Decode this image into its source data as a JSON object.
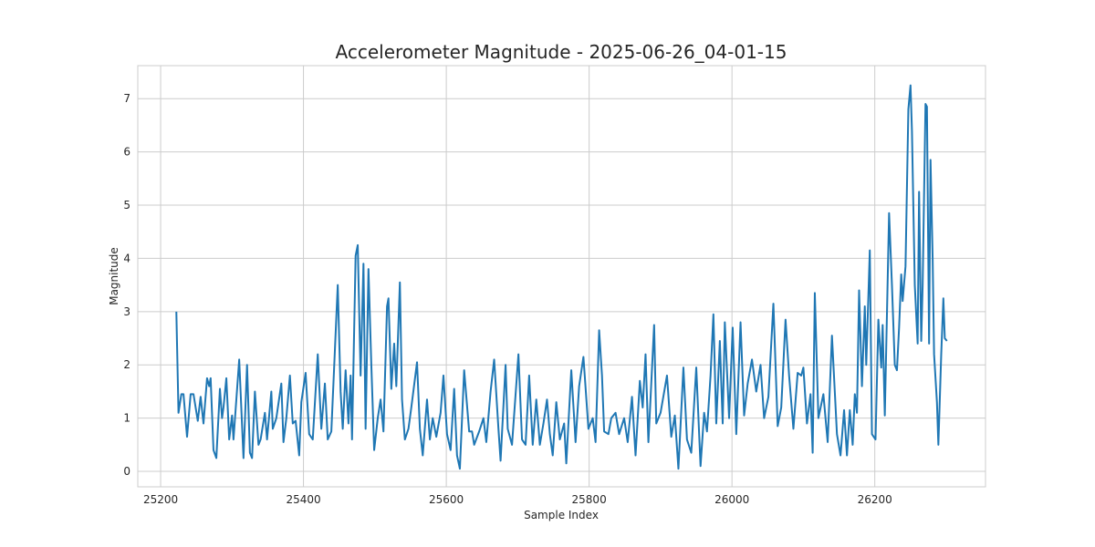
{
  "chart_data": {
    "type": "line",
    "title": "Accelerometer Magnitude - 2025-06-26_04-01-15",
    "x_label": "Sample Index",
    "y_label": "Magnitude",
    "xlim": [
      25168,
      26355
    ],
    "ylim": [
      -0.29,
      7.62
    ],
    "xticks": [
      25200,
      25400,
      25600,
      25800,
      26000,
      26200
    ],
    "yticks": [
      0,
      1,
      2,
      3,
      4,
      5,
      6,
      7
    ],
    "grid": true,
    "series": [
      {
        "name": "Magnitude",
        "color": "#1f77b4",
        "x": [
          25222,
          25225,
          25229,
          25232,
          25237,
          25242,
          25246,
          25252,
          25256,
          25260,
          25265,
          25268,
          25270,
          25274,
          25278,
          25283,
          25286,
          25288,
          25292,
          25296,
          25300,
          25302,
          25310,
          25316,
          25321,
          25325,
          25328,
          25332,
          25337,
          25340,
          25346,
          25349,
          25355,
          25357,
          25362,
          25369,
          25372,
          25376,
          25381,
          25385,
          25389,
          25394,
          25397,
          25403,
          25408,
          25413,
          25420,
          25425,
          25430,
          25434,
          25439,
          25448,
          25452,
          25455,
          25459,
          25463,
          25466,
          25468,
          25473,
          25476,
          25480,
          25484,
          25487,
          25491,
          25495,
          25499,
          25504,
          25508,
          25512,
          25517,
          25519,
          25523,
          25527,
          25530,
          25535,
          25538,
          25542,
          25547,
          25551,
          25559,
          25563,
          25567,
          25573,
          25577,
          25581,
          25586,
          25592,
          25596,
          25601,
          25606,
          25611,
          25615,
          25619,
          25625,
          25632,
          25636,
          25639,
          25646,
          25652,
          25656,
          25662,
          25667,
          25673,
          25676,
          25683,
          25686,
          25692,
          25701,
          25706,
          25711,
          25716,
          25721,
          25726,
          25731,
          25736,
          25741,
          25745,
          25749,
          25754,
          25759,
          25765,
          25768,
          25775,
          25781,
          25786,
          25792,
          25799,
          25805,
          25809,
          25814,
          25818,
          25821,
          25827,
          25831,
          25837,
          25842,
          25849,
          25854,
          25860,
          25865,
          25871,
          25875,
          25879,
          25883,
          25891,
          25894,
          25900,
          25909,
          25915,
          25920,
          25925,
          25932,
          25937,
          25943,
          25950,
          25956,
          25961,
          25965,
          25970,
          25974,
          25978,
          25983,
          25987,
          25990,
          25996,
          26001,
          26006,
          26012,
          26017,
          26022,
          26028,
          26034,
          26040,
          26045,
          26051,
          26058,
          26064,
          26069,
          26075,
          26080,
          26086,
          26092,
          26097,
          26100,
          26105,
          26110,
          26113,
          26116,
          26121,
          26128,
          26134,
          26140,
          26147,
          26152,
          26157,
          26161,
          26165,
          26169,
          26172,
          26175,
          26178,
          26182,
          26186,
          26188,
          26193,
          26196,
          26201,
          26205,
          26209,
          26211,
          26214,
          26220,
          26224,
          26228,
          26231,
          26234,
          26237,
          26239,
          26243,
          26247,
          26250,
          26252,
          26256,
          26260,
          26262,
          26265,
          26267,
          26271,
          26273,
          26276,
          26278,
          26281,
          26283,
          26287,
          26289,
          26293,
          26296,
          26298,
          26301
        ],
        "values": [
          3.0,
          1.1,
          1.45,
          1.45,
          0.65,
          1.45,
          1.45,
          0.95,
          1.4,
          0.9,
          1.75,
          1.6,
          1.75,
          0.4,
          0.25,
          1.55,
          1.0,
          1.2,
          1.75,
          0.6,
          1.05,
          0.6,
          2.1,
          0.25,
          2.0,
          0.35,
          0.25,
          1.5,
          0.5,
          0.6,
          1.1,
          0.6,
          1.5,
          0.8,
          1.0,
          1.65,
          0.55,
          1.0,
          1.8,
          0.9,
          0.95,
          0.3,
          1.3,
          1.85,
          0.7,
          0.6,
          2.2,
          0.8,
          1.65,
          0.6,
          0.75,
          3.5,
          1.5,
          0.8,
          1.9,
          0.9,
          1.8,
          0.6,
          4.05,
          4.25,
          1.8,
          3.9,
          0.8,
          3.8,
          2.0,
          0.4,
          1.0,
          1.35,
          0.75,
          3.1,
          3.25,
          1.55,
          2.4,
          1.6,
          3.55,
          1.35,
          0.6,
          0.8,
          1.2,
          2.05,
          0.8,
          0.3,
          1.35,
          0.6,
          1.0,
          0.65,
          1.1,
          1.8,
          0.7,
          0.4,
          1.55,
          0.3,
          0.05,
          1.9,
          0.75,
          0.75,
          0.5,
          0.75,
          1.0,
          0.55,
          1.5,
          2.1,
          0.8,
          0.2,
          2.0,
          0.8,
          0.5,
          2.2,
          0.6,
          0.5,
          1.8,
          0.5,
          1.35,
          0.5,
          0.9,
          1.35,
          0.7,
          0.3,
          1.3,
          0.6,
          0.9,
          0.15,
          1.9,
          0.55,
          1.6,
          2.15,
          0.8,
          1.0,
          0.55,
          2.65,
          1.8,
          0.75,
          0.7,
          1.0,
          1.1,
          0.7,
          1.0,
          0.55,
          1.4,
          0.3,
          1.7,
          1.2,
          2.2,
          0.55,
          2.75,
          0.9,
          1.1,
          1.8,
          0.65,
          1.05,
          0.05,
          1.95,
          0.6,
          0.35,
          1.95,
          0.1,
          1.1,
          0.75,
          1.8,
          2.95,
          0.9,
          2.45,
          0.9,
          2.8,
          1.0,
          2.7,
          0.7,
          2.8,
          1.05,
          1.65,
          2.1,
          1.5,
          2.0,
          1.0,
          1.4,
          3.15,
          0.85,
          1.2,
          2.85,
          1.8,
          0.8,
          1.85,
          1.8,
          1.95,
          0.9,
          1.45,
          0.35,
          3.35,
          1.0,
          1.45,
          0.55,
          2.55,
          0.7,
          0.3,
          1.15,
          0.3,
          1.15,
          0.5,
          1.45,
          1.1,
          3.4,
          1.6,
          3.1,
          2.0,
          4.15,
          0.7,
          0.6,
          2.85,
          1.95,
          2.75,
          1.05,
          4.85,
          3.5,
          2.0,
          1.9,
          2.7,
          3.7,
          3.2,
          3.85,
          6.8,
          7.25,
          6.4,
          3.5,
          2.4,
          5.25,
          2.45,
          3.5,
          6.9,
          6.85,
          2.4,
          5.85,
          4.0,
          2.2,
          1.3,
          0.5,
          2.2,
          3.25,
          2.5,
          2.45
        ]
      }
    ]
  }
}
